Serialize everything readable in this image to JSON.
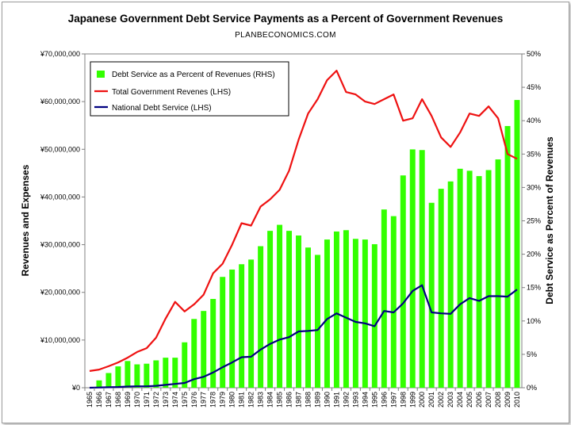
{
  "chart_data": {
    "type": "bar",
    "title": "Japanese Government Debt Service Payments as a Percent of Government Revenues",
    "subtitle": "PLANBECONOMICS.COM",
    "ylabel_left": "Revenues and Expenses",
    "ylabel_right": "Debt Service as Percent of Revenues",
    "ylim_left": [
      0,
      70000000
    ],
    "ylim_right": [
      0,
      0.5
    ],
    "left_ticks": [
      "¥0",
      "¥10,000,000",
      "¥20,000,000",
      "¥30,000,000",
      "¥40,000,000",
      "¥50,000,000",
      "¥60,000,000",
      "¥70,000,000"
    ],
    "right_ticks": [
      "0%",
      "5%",
      "10%",
      "15%",
      "20%",
      "25%",
      "30%",
      "35%",
      "40%",
      "45%",
      "50%"
    ],
    "grid": false,
    "legend_position": "top-left",
    "categories": [
      "1965",
      "1966",
      "1967",
      "1968",
      "1969",
      "1970",
      "1971",
      "1972",
      "1973",
      "1974",
      "1975",
      "1976",
      "1977",
      "1978",
      "1979",
      "1980",
      "1981",
      "1982",
      "1983",
      "1984",
      "1985",
      "1986",
      "1987",
      "1988",
      "1989",
      "1990",
      "1991",
      "1992",
      "1993",
      "1994",
      "1995",
      "1996",
      "1997",
      "1998",
      "1999",
      "2000",
      "2001",
      "2002",
      "2003",
      "2004",
      "2005",
      "2006",
      "2007",
      "2008",
      "2009",
      "2010"
    ],
    "series": [
      {
        "name": "Debt Service as a Percent of Revenues (RHS)",
        "type": "bar",
        "axis": "right",
        "color": "#33ff00",
        "values": [
          0.0,
          0.011,
          0.022,
          0.032,
          0.04,
          0.035,
          0.036,
          0.041,
          0.045,
          0.045,
          0.068,
          0.103,
          0.115,
          0.133,
          0.166,
          0.177,
          0.185,
          0.192,
          0.212,
          0.235,
          0.244,
          0.235,
          0.228,
          0.21,
          0.199,
          0.222,
          0.234,
          0.236,
          0.223,
          0.222,
          0.215,
          0.267,
          0.257,
          0.318,
          0.357,
          0.356,
          0.277,
          0.298,
          0.309,
          0.328,
          0.325,
          0.317,
          0.326,
          0.342,
          0.392,
          0.431
        ]
      },
      {
        "name": "Total Government Revenes (LHS)",
        "type": "line",
        "axis": "left",
        "color": "#ee1111",
        "values": [
          3500000,
          3800000,
          4500000,
          5300000,
          6300000,
          7500000,
          8300000,
          10500000,
          14500000,
          18000000,
          16000000,
          17500000,
          19500000,
          24000000,
          26000000,
          30000000,
          34500000,
          34000000,
          38000000,
          39500000,
          41500000,
          45500000,
          52000000,
          57500000,
          60500000,
          64500000,
          66500000,
          62000000,
          61500000,
          60000000,
          59500000,
          60500000,
          61500000,
          56000000,
          56500000,
          60500000,
          57000000,
          52500000,
          50500000,
          53500000,
          57500000,
          57000000,
          59000000,
          56500000,
          49000000,
          48000000
        ]
      },
      {
        "name": "National Debt Service (LHS)",
        "type": "line",
        "axis": "left",
        "color": "#000080",
        "values": [
          0,
          50000,
          100000,
          150000,
          250000,
          300000,
          300000,
          400000,
          600000,
          800000,
          1000000,
          1800000,
          2300000,
          3200000,
          4300000,
          5300000,
          6400000,
          6500000,
          8000000,
          9200000,
          10100000,
          10600000,
          11800000,
          11900000,
          12100000,
          14400000,
          15600000,
          14700000,
          13800000,
          13500000,
          12900000,
          16100000,
          15800000,
          17700000,
          20300000,
          21500000,
          15800000,
          15600000,
          15500000,
          17500000,
          18800000,
          18200000,
          19200000,
          19200000,
          19100000,
          20600000
        ]
      }
    ]
  }
}
